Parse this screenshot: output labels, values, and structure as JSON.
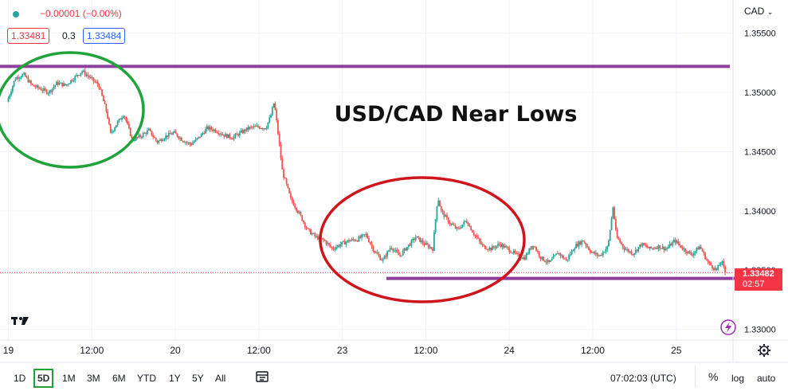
{
  "header": {
    "change": "−0.00001 (−0.00%)",
    "bid": "1.33481",
    "spread": "0.3",
    "ask": "1.33484"
  },
  "currency_label": "CAD",
  "chevron_icon": "chevron-down-icon",
  "logo_icon": "tradingview-logo-icon",
  "lightning_icon": "lightning-icon",
  "settings_icon": "gear-icon",
  "compare_icon": "compare-icon",
  "price_tag": {
    "value": "1.33482",
    "countdown": "02:57"
  },
  "timeframes": [
    "1D",
    "5D",
    "1M",
    "3M",
    "6M",
    "YTD",
    "1Y",
    "5Y",
    "All"
  ],
  "active_timeframe": "5D",
  "bottom_right": {
    "clock": "07:02:03 (UTC)",
    "percent": "%",
    "log": "log",
    "auto": "auto"
  },
  "colors": {
    "up": "#26a69a",
    "down": "#ef5350",
    "resistance": "#8e3f9e",
    "green_circle": "#1fa33a",
    "red_circle": "#d0141c"
  },
  "chart_data": {
    "type": "line",
    "title": "USD/CAD Near Lows",
    "xlabel": "",
    "ylabel": "",
    "ylim": [
      1.3291,
      1.3578
    ],
    "y_ticks": [
      "1.35500",
      "1.35000",
      "1.34500",
      "1.34000",
      "1.33500",
      "1.33000"
    ],
    "x_ticks": [
      "19",
      "12:00",
      "20",
      "12:00",
      "23",
      "12:00",
      "24",
      "12:00",
      "25"
    ],
    "x_tick_index": [
      0,
      0.5,
      1,
      1.5,
      2,
      2.5,
      3,
      3.5,
      4
    ],
    "x_range": [
      -0.05,
      4.34
    ],
    "series": [
      {
        "x": [
          0,
          0.05,
          0.1,
          0.15,
          0.2,
          0.25,
          0.3,
          0.35,
          0.4,
          0.45,
          0.5,
          0.55,
          0.6,
          0.62,
          0.65,
          0.7,
          0.75,
          0.8,
          0.85,
          0.9,
          0.95,
          1.0,
          1.05,
          1.1,
          1.15,
          1.2,
          1.25,
          1.3,
          1.35,
          1.4,
          1.45,
          1.5,
          1.55,
          1.58,
          1.6,
          1.62,
          1.65,
          1.7,
          1.75,
          1.8,
          1.85,
          1.9,
          1.95,
          2.0,
          2.05,
          2.1,
          2.15,
          2.2,
          2.25,
          2.3,
          2.35,
          2.4,
          2.45,
          2.5,
          2.55,
          2.58,
          2.6,
          2.65,
          2.7,
          2.75,
          2.8,
          2.85,
          2.9,
          2.95,
          3.0,
          3.05,
          3.1,
          3.15,
          3.2,
          3.25,
          3.3,
          3.35,
          3.4,
          3.45,
          3.5,
          3.55,
          3.6,
          3.63,
          3.65,
          3.7,
          3.75,
          3.8,
          3.85,
          3.9,
          3.95,
          4.0,
          4.05,
          4.1,
          4.15,
          4.2,
          4.25,
          4.28,
          4.3
        ],
        "y": [
          1.3492,
          1.3512,
          1.3515,
          1.3506,
          1.3503,
          1.35,
          1.3508,
          1.3506,
          1.3512,
          1.3518,
          1.3512,
          1.3506,
          1.3482,
          1.3465,
          1.3472,
          1.3482,
          1.346,
          1.3463,
          1.3468,
          1.3458,
          1.3463,
          1.3466,
          1.346,
          1.3456,
          1.3462,
          1.347,
          1.3468,
          1.3464,
          1.3462,
          1.3466,
          1.347,
          1.3471,
          1.347,
          1.348,
          1.3492,
          1.347,
          1.3433,
          1.341,
          1.3398,
          1.3384,
          1.3378,
          1.3375,
          1.3368,
          1.3372,
          1.3375,
          1.3376,
          1.338,
          1.3366,
          1.3358,
          1.337,
          1.3362,
          1.337,
          1.3378,
          1.3372,
          1.3368,
          1.3412,
          1.34,
          1.339,
          1.3384,
          1.3392,
          1.338,
          1.337,
          1.3368,
          1.3372,
          1.3368,
          1.3363,
          1.336,
          1.3372,
          1.336,
          1.3356,
          1.3365,
          1.3358,
          1.337,
          1.3375,
          1.3365,
          1.3362,
          1.337,
          1.3404,
          1.3378,
          1.3368,
          1.3364,
          1.3372,
          1.3368,
          1.337,
          1.3368,
          1.3375,
          1.3368,
          1.3363,
          1.337,
          1.3356,
          1.335,
          1.3358,
          1.3348
        ]
      }
    ],
    "horizontal_lines": [
      1.3522,
      1.3343
    ],
    "annotations": [
      "USD/CAD Near Lows"
    ]
  }
}
